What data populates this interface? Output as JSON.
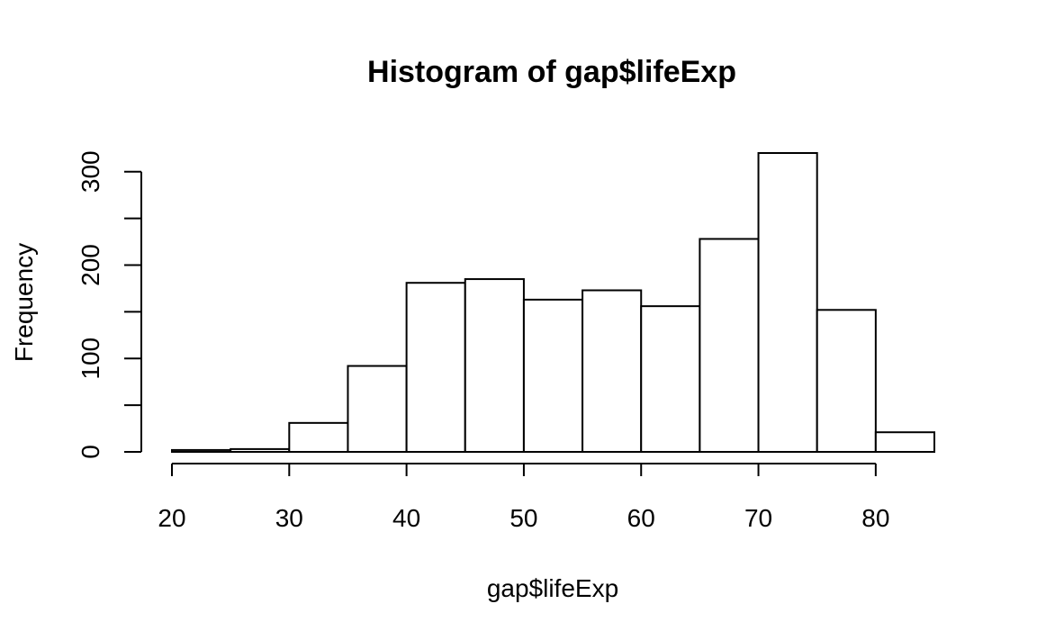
{
  "chart_data": {
    "type": "bar",
    "title": "Histogram of gap$lifeExp",
    "xlabel": "gap$lifeExp",
    "ylabel": "Frequency",
    "bins": [
      {
        "from": 20,
        "to": 25,
        "count": 2
      },
      {
        "from": 25,
        "to": 30,
        "count": 3
      },
      {
        "from": 30,
        "to": 35,
        "count": 31
      },
      {
        "from": 35,
        "to": 40,
        "count": 92
      },
      {
        "from": 40,
        "to": 45,
        "count": 181
      },
      {
        "from": 45,
        "to": 50,
        "count": 185
      },
      {
        "from": 50,
        "to": 55,
        "count": 163
      },
      {
        "from": 55,
        "to": 60,
        "count": 173
      },
      {
        "from": 60,
        "to": 65,
        "count": 156
      },
      {
        "from": 65,
        "to": 70,
        "count": 228
      },
      {
        "from": 70,
        "to": 75,
        "count": 320
      },
      {
        "from": 75,
        "to": 80,
        "count": 152
      },
      {
        "from": 80,
        "to": 85,
        "count": 21
      }
    ],
    "xlim": [
      20,
      85
    ],
    "ylim": [
      0,
      320
    ],
    "x_ticks": [
      20,
      30,
      40,
      50,
      60,
      70,
      80
    ],
    "x_tick_labels": [
      "20",
      "30",
      "40",
      "50",
      "60",
      "70",
      "80"
    ],
    "y_ticks": [
      0,
      50,
      100,
      150,
      200,
      250,
      300
    ],
    "y_tick_labels": [
      "0",
      "",
      "100",
      "",
      "200",
      "",
      "300"
    ],
    "grid": false,
    "bar_fill": "#ffffff",
    "bar_stroke": "#000000"
  }
}
